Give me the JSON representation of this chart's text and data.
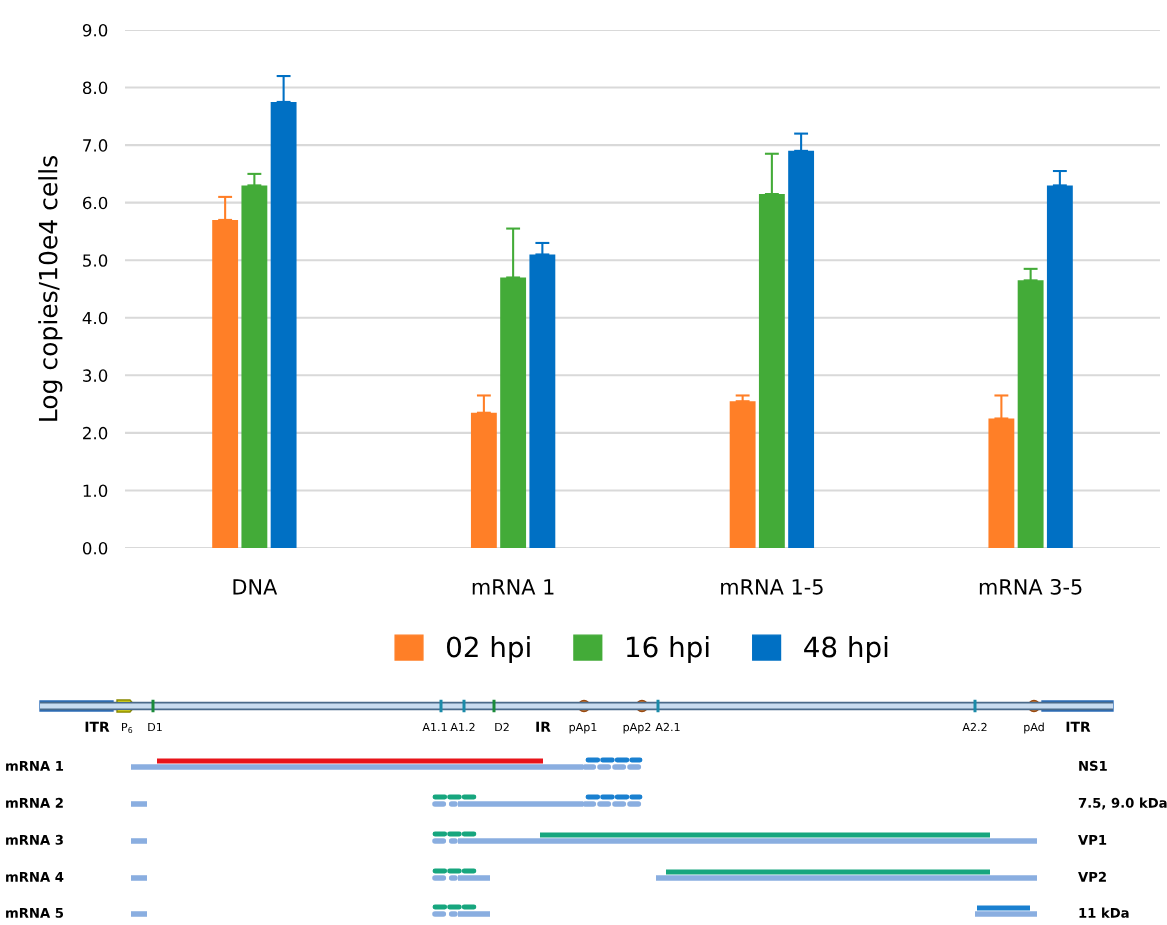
{
  "chart_data": [
    {
      "type": "bar",
      "ylabel": "Log copies/10e4 cells",
      "categories": [
        "DNA",
        "mRNA 1",
        "mRNA 1-5",
        "mRNA 3-5"
      ],
      "series": [
        {
          "name": "02 hpi",
          "color": "#ff7f27",
          "values": [
            5.7,
            2.35,
            2.55,
            2.25
          ],
          "errors": [
            [
              5.7,
              6.1
            ],
            [
              2.35,
              2.65
            ],
            [
              2.55,
              2.65
            ],
            [
              2.25,
              2.65
            ]
          ]
        },
        {
          "name": "16 hpi",
          "color": "#43ab38",
          "values": [
            6.3,
            4.7,
            6.15,
            4.65
          ],
          "errors": [
            [
              6.3,
              6.5
            ],
            [
              4.7,
              5.55
            ],
            [
              6.15,
              6.85
            ],
            [
              4.65,
              4.85
            ]
          ]
        },
        {
          "name": "48 hpi",
          "color": "#0070c4",
          "values": [
            7.75,
            5.1,
            6.9,
            6.3
          ],
          "errors": [
            [
              7.75,
              8.2
            ],
            [
              5.1,
              5.3
            ],
            [
              6.9,
              7.2
            ],
            [
              6.3,
              6.55
            ]
          ]
        }
      ],
      "ylim": [
        0,
        9
      ],
      "yticks": [
        {
          "value": 0,
          "label": "0.0"
        },
        {
          "value": 1,
          "label": "1.0"
        },
        {
          "value": 2,
          "label": "2.0"
        },
        {
          "value": 3,
          "label": "3.0"
        },
        {
          "value": 4,
          "label": "4.0"
        },
        {
          "value": 5,
          "label": "5.0"
        },
        {
          "value": 6,
          "label": "6.0"
        },
        {
          "value": 7,
          "label": "7.0"
        },
        {
          "value": 8,
          "label": "8.0"
        },
        {
          "value": 9,
          "label": "9.0"
        }
      ],
      "grid": "y",
      "legend": "bottom"
    },
    {
      "type": "other",
      "annotations": [
        "ITR",
        "P$_{6}$",
        "D1",
        "A1.1",
        "A1.2",
        "D2",
        "IR",
        "pAp1",
        "pAp2",
        "A2.1",
        "A2.2",
        "pAd",
        "ITR",
        "mRNA 1",
        "mRNA 2",
        "mRNA 3",
        "mRNA 4",
        "mRNA 5",
        "NS1",
        "7.5, 9.0 kDa",
        "VP1",
        "VP2",
        "11 kDa"
      ]
    }
  ]
}
